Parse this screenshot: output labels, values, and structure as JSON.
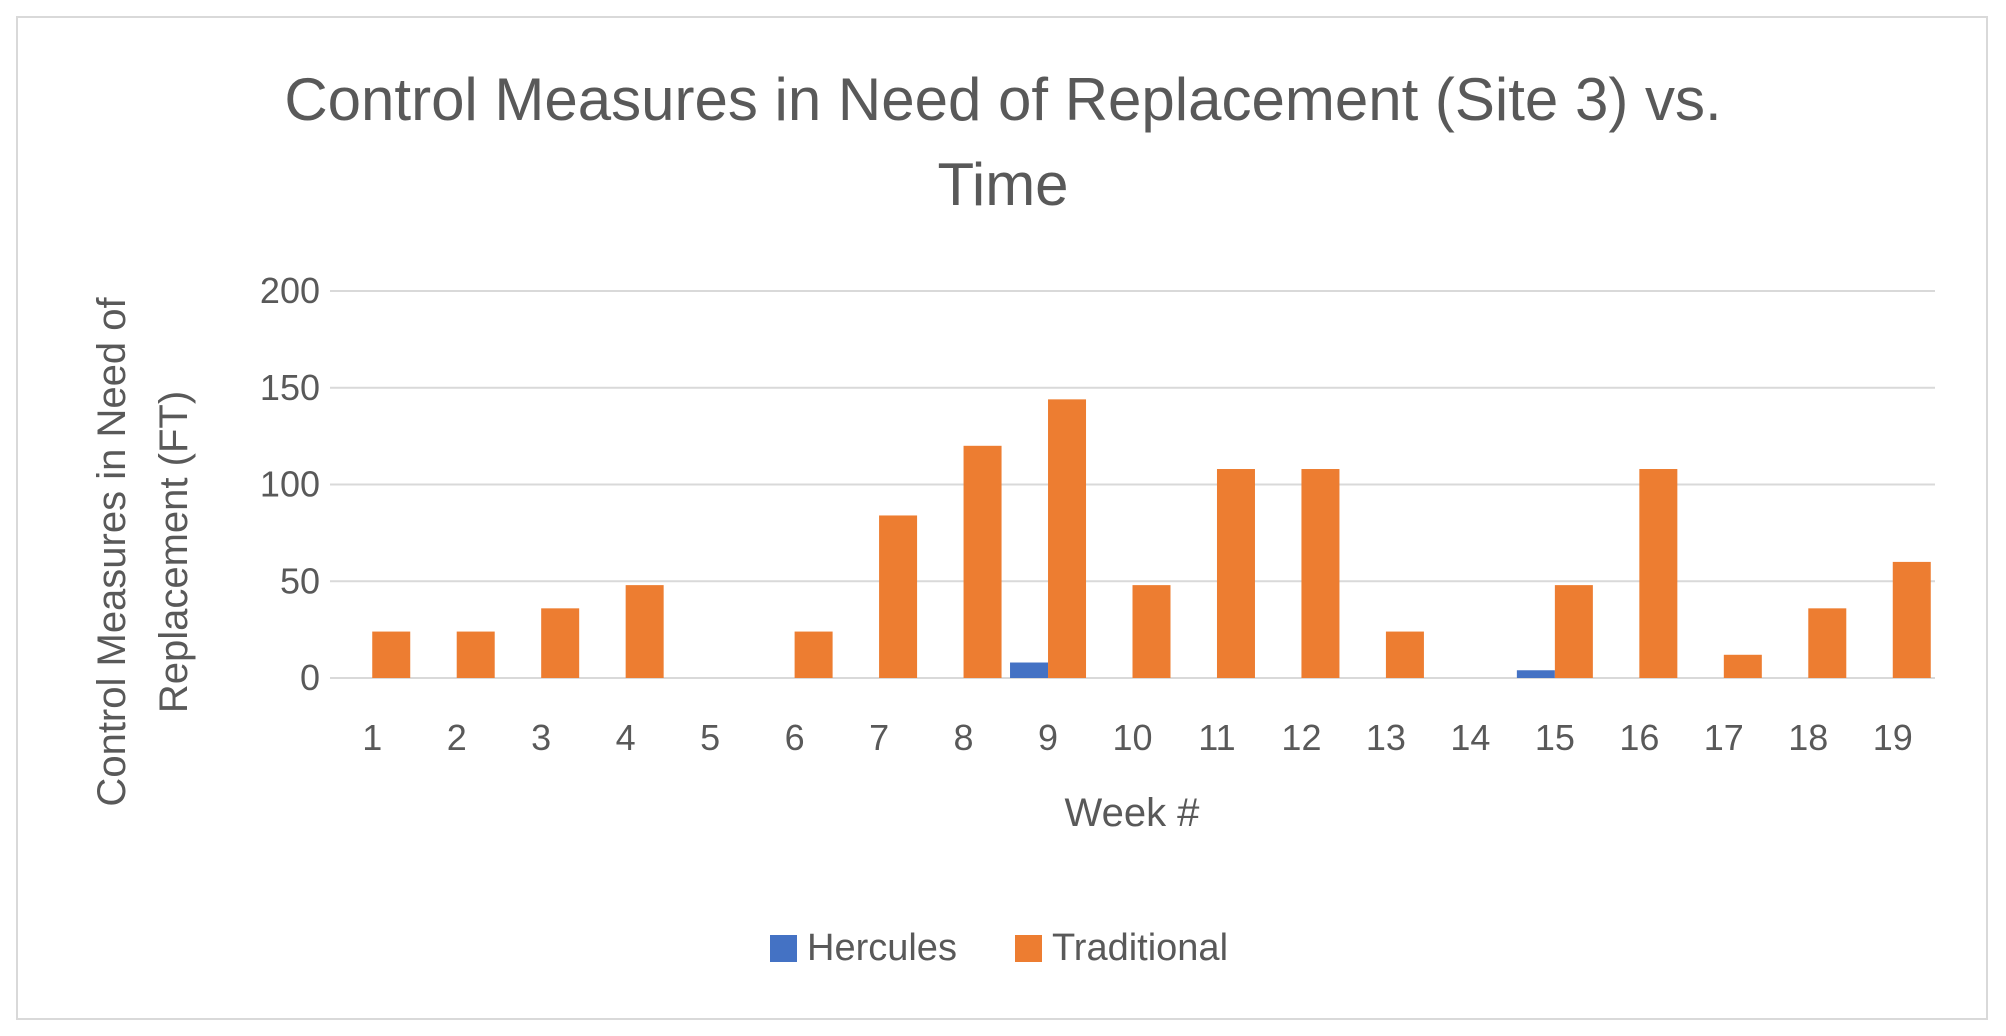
{
  "chart_data": {
    "type": "bar",
    "title": "Control Measures in Need of Replacement (Site 3) vs. Time",
    "title_lines": [
      "Control Measures in Need of Replacement (Site 3) vs.",
      "Time"
    ],
    "xlabel": "Week #",
    "ylabel": "Control Measures in Need of Replacement (FT)",
    "ylabel_lines": [
      "Control Measures in Need of",
      "Replacement (FT)"
    ],
    "ylim": [
      0,
      200
    ],
    "yticks": [
      0,
      50,
      100,
      150,
      200
    ],
    "grid": true,
    "legend_position": "bottom",
    "categories": [
      "1",
      "2",
      "3",
      "4",
      "5",
      "6",
      "7",
      "8",
      "9",
      "10",
      "11",
      "12",
      "13",
      "14",
      "15",
      "16",
      "17",
      "18",
      "19"
    ],
    "series": [
      {
        "name": "Hercules",
        "color": "#4472C4",
        "values": [
          0,
          0,
          0,
          0,
          0,
          0,
          0,
          0,
          8,
          0,
          0,
          0,
          0,
          0,
          4,
          0,
          0,
          0,
          0
        ]
      },
      {
        "name": "Traditional",
        "color": "#ED7D31",
        "values": [
          24,
          24,
          36,
          48,
          0,
          24,
          84,
          120,
          144,
          48,
          108,
          108,
          24,
          0,
          48,
          108,
          12,
          36,
          60
        ]
      }
    ]
  }
}
